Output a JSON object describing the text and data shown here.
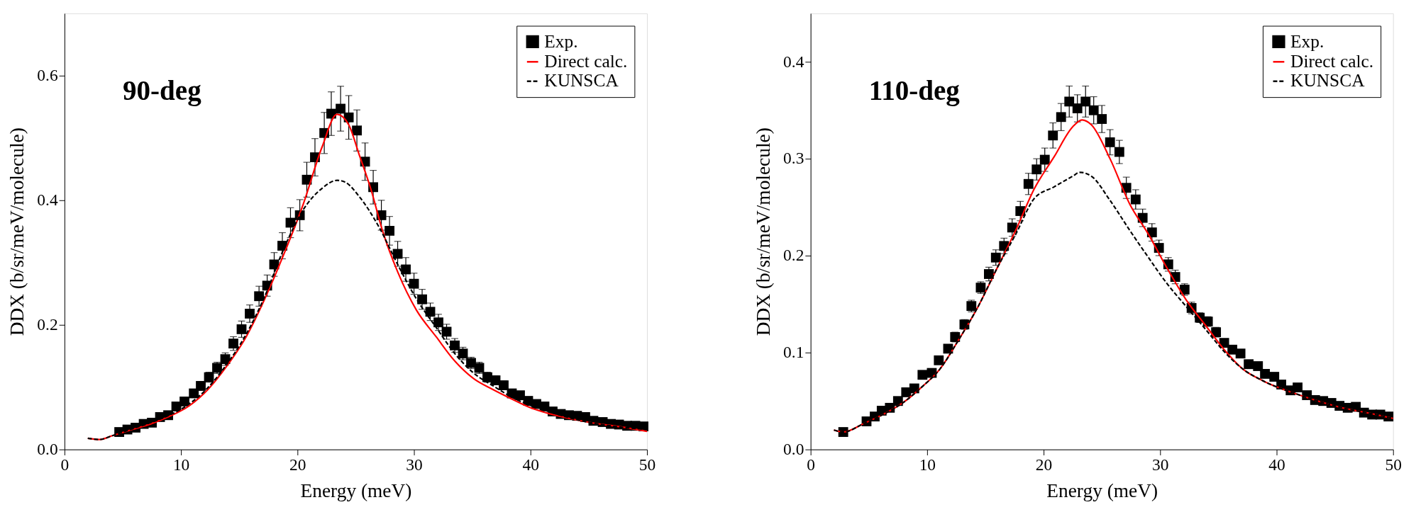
{
  "chart_data": [
    {
      "type": "line",
      "xlabel": "Energy (meV)",
      "ylabel": "DDX (b/sr/meV/molecule)",
      "xlim": [
        0,
        50
      ],
      "xticks": [
        0,
        10,
        20,
        30,
        40,
        50
      ],
      "ylim": [
        0,
        0.7
      ],
      "yticks": [
        {
          "value": 0,
          "label": "0.0"
        },
        0.2,
        0.4,
        0.6
      ],
      "legend": "top right",
      "grid": false,
      "annotations": [
        "90-deg"
      ],
      "series": [
        {
          "name": "Exp.",
          "type": "scatter",
          "marker": "square",
          "color": "#000000",
          "x": [
            4.7,
            5.4,
            6.1,
            6.8,
            7.5,
            8.2,
            8.9,
            9.6,
            10.3,
            11.1,
            11.7,
            12.4,
            13.1,
            13.8,
            14.5,
            15.2,
            15.9,
            16.7,
            17.4,
            18.0,
            18.7,
            19.4,
            20.2,
            20.8,
            21.5,
            22.3,
            22.9,
            23.7,
            24.4,
            25.1,
            25.8,
            26.5,
            27.2,
            27.9,
            28.6,
            29.3,
            30.0,
            30.7,
            31.4,
            32.1,
            32.8,
            33.5,
            34.2,
            34.9,
            35.6,
            36.3,
            37.0,
            37.7,
            38.4,
            39.1,
            39.8,
            40.5,
            41.2,
            41.9,
            42.6,
            43.3,
            44.0,
            44.7,
            45.4,
            46.2,
            46.9,
            47.6,
            48.3,
            49.0,
            49.7
          ],
          "values": [
            0.028,
            0.032,
            0.035,
            0.041,
            0.043,
            0.052,
            0.055,
            0.069,
            0.077,
            0.09,
            0.102,
            0.116,
            0.131,
            0.145,
            0.17,
            0.193,
            0.218,
            0.246,
            0.263,
            0.297,
            0.327,
            0.364,
            0.376,
            0.433,
            0.469,
            0.508,
            0.539,
            0.547,
            0.533,
            0.512,
            0.462,
            0.421,
            0.376,
            0.351,
            0.314,
            0.289,
            0.266,
            0.241,
            0.221,
            0.204,
            0.189,
            0.167,
            0.154,
            0.139,
            0.131,
            0.116,
            0.111,
            0.103,
            0.09,
            0.087,
            0.078,
            0.073,
            0.069,
            0.061,
            0.057,
            0.055,
            0.054,
            0.052,
            0.046,
            0.044,
            0.041,
            0.04,
            0.038,
            0.038,
            0.037
          ],
          "errors": [
            0.003,
            0.003,
            0.003,
            0.003,
            0.003,
            0.004,
            0.004,
            0.005,
            0.005,
            0.006,
            0.007,
            0.008,
            0.009,
            0.01,
            0.011,
            0.013,
            0.014,
            0.016,
            0.017,
            0.019,
            0.021,
            0.024,
            0.025,
            0.028,
            0.03,
            0.033,
            0.035,
            0.036,
            0.035,
            0.033,
            0.03,
            0.027,
            0.024,
            0.023,
            0.02,
            0.019,
            0.017,
            0.016,
            0.014,
            0.013,
            0.012,
            0.011,
            0.01,
            0.009,
            0.009,
            0.008,
            0.007,
            0.007,
            0.006,
            0.006,
            0.005,
            0.005,
            0.005,
            0.004,
            0.004,
            0.004,
            0.004,
            0.003,
            0.003,
            0.003,
            0.003,
            0.003,
            0.003,
            0.003,
            0.003
          ]
        },
        {
          "name": "Direct calc.",
          "line_style": "solid",
          "color": "#ff0000",
          "x": [
            2.0,
            3.0,
            4.1,
            5.8,
            7.4,
            9.0,
            10.7,
            12.3,
            13.9,
            15.6,
            17.2,
            18.8,
            20.5,
            22.1,
            23.4,
            24.4,
            25.3,
            26.3,
            27.3,
            28.6,
            30.2,
            31.9,
            33.5,
            35.1,
            36.8,
            38.4,
            40.0,
            41.7,
            44.9,
            48.2,
            50.0
          ],
          "values": [
            0.018,
            0.016,
            0.022,
            0.032,
            0.041,
            0.053,
            0.07,
            0.096,
            0.133,
            0.181,
            0.242,
            0.312,
            0.394,
            0.485,
            0.538,
            0.521,
            0.473,
            0.418,
            0.351,
            0.285,
            0.224,
            0.181,
            0.142,
            0.114,
            0.096,
            0.081,
            0.067,
            0.057,
            0.044,
            0.035,
            0.029
          ]
        },
        {
          "name": "KUNSCA",
          "line_style": "dashed",
          "color": "#000000",
          "x": [
            2.0,
            3.0,
            4.1,
            5.8,
            7.4,
            9.0,
            10.7,
            12.3,
            13.9,
            15.6,
            17.2,
            18.8,
            20.5,
            22.1,
            23.4,
            24.1,
            25.3,
            27.0,
            28.6,
            30.2,
            31.9,
            33.5,
            35.1,
            36.8,
            38.4,
            41.7,
            44.9,
            48.2,
            50.0
          ],
          "values": [
            0.018,
            0.016,
            0.022,
            0.033,
            0.043,
            0.055,
            0.073,
            0.099,
            0.136,
            0.185,
            0.246,
            0.321,
            0.385,
            0.419,
            0.432,
            0.429,
            0.406,
            0.357,
            0.297,
            0.242,
            0.196,
            0.154,
            0.123,
            0.102,
            0.084,
            0.06,
            0.044,
            0.035,
            0.032
          ]
        }
      ]
    },
    {
      "type": "line",
      "xlabel": "Energy (meV)",
      "ylabel": "DDX (b/sr/meV/molecule)",
      "xlim": [
        0,
        50
      ],
      "xticks": [
        0,
        10,
        20,
        30,
        40,
        50
      ],
      "ylim": [
        0,
        0.45
      ],
      "yticks": [
        {
          "value": 0,
          "label": "0.0"
        },
        0.1,
        0.2,
        0.3,
        0.4
      ],
      "legend": "top right",
      "grid": false,
      "annotations": [
        "110-deg"
      ],
      "series": [
        {
          "name": "Exp.",
          "type": "scatter",
          "marker": "square",
          "color": "#000000",
          "x": [
            2.8,
            4.8,
            5.5,
            6.1,
            6.8,
            7.5,
            8.2,
            8.9,
            9.6,
            10.4,
            11.0,
            11.8,
            12.4,
            13.2,
            13.8,
            14.6,
            15.3,
            15.9,
            16.6,
            17.3,
            18.0,
            18.7,
            19.4,
            20.1,
            20.8,
            21.5,
            22.2,
            22.9,
            23.6,
            24.3,
            25.0,
            25.7,
            26.5,
            27.1,
            27.9,
            28.5,
            29.3,
            29.9,
            30.7,
            31.3,
            32.1,
            32.7,
            33.4,
            34.1,
            34.8,
            35.5,
            36.2,
            36.9,
            37.6,
            38.4,
            39.0,
            39.8,
            40.4,
            41.2,
            41.8,
            42.6,
            43.3,
            44.0,
            44.7,
            45.4,
            46.1,
            46.8,
            47.5,
            48.2,
            48.9,
            49.6
          ],
          "values": [
            0.018,
            0.029,
            0.034,
            0.04,
            0.043,
            0.05,
            0.059,
            0.063,
            0.077,
            0.079,
            0.092,
            0.104,
            0.116,
            0.129,
            0.148,
            0.167,
            0.181,
            0.198,
            0.21,
            0.229,
            0.246,
            0.274,
            0.289,
            0.299,
            0.324,
            0.343,
            0.359,
            0.352,
            0.359,
            0.35,
            0.341,
            0.317,
            0.307,
            0.27,
            0.258,
            0.239,
            0.224,
            0.208,
            0.191,
            0.178,
            0.165,
            0.146,
            0.136,
            0.132,
            0.121,
            0.11,
            0.103,
            0.099,
            0.088,
            0.086,
            0.078,
            0.075,
            0.067,
            0.061,
            0.064,
            0.056,
            0.051,
            0.05,
            0.048,
            0.045,
            0.043,
            0.044,
            0.038,
            0.036,
            0.036,
            0.034
          ],
          "errors": [
            0.001,
            0.002,
            0.002,
            0.002,
            0.002,
            0.002,
            0.003,
            0.003,
            0.003,
            0.003,
            0.004,
            0.004,
            0.005,
            0.005,
            0.006,
            0.006,
            0.007,
            0.008,
            0.008,
            0.009,
            0.01,
            0.011,
            0.011,
            0.012,
            0.013,
            0.014,
            0.016,
            0.014,
            0.016,
            0.014,
            0.014,
            0.013,
            0.012,
            0.011,
            0.01,
            0.009,
            0.009,
            0.008,
            0.007,
            0.007,
            0.006,
            0.006,
            0.005,
            0.005,
            0.005,
            0.004,
            0.004,
            0.004,
            0.003,
            0.003,
            0.003,
            0.003,
            0.003,
            0.002,
            0.002,
            0.002,
            0.002,
            0.002,
            0.002,
            0.002,
            0.002,
            0.002,
            0.002,
            0.001,
            0.001,
            0.001
          ]
        },
        {
          "name": "Direct calc.",
          "line_style": "solid",
          "color": "#ff0000",
          "x": [
            2.0,
            2.8,
            4.6,
            6.2,
            7.9,
            9.5,
            11.1,
            12.7,
            14.4,
            16.0,
            17.6,
            19.2,
            20.9,
            22.5,
            23.3,
            24.1,
            25.7,
            27.4,
            29.0,
            30.6,
            32.2,
            33.9,
            35.5,
            37.1,
            38.8,
            42.0,
            45.3,
            48.5,
            50.0
          ],
          "values": [
            0.02,
            0.018,
            0.027,
            0.036,
            0.048,
            0.064,
            0.083,
            0.113,
            0.148,
            0.187,
            0.226,
            0.269,
            0.302,
            0.333,
            0.34,
            0.335,
            0.3,
            0.253,
            0.222,
            0.187,
            0.155,
            0.128,
            0.103,
            0.083,
            0.071,
            0.056,
            0.044,
            0.036,
            0.032
          ]
        },
        {
          "name": "KUNSCA",
          "line_style": "dashed",
          "color": "#000000",
          "x": [
            2.0,
            2.8,
            4.6,
            6.2,
            7.9,
            9.5,
            11.1,
            12.7,
            14.4,
            16.0,
            17.6,
            19.2,
            20.9,
            22.5,
            23.1,
            24.1,
            25.7,
            27.4,
            29.0,
            30.6,
            32.2,
            33.9,
            35.5,
            37.1,
            38.8,
            42.0,
            45.3,
            48.5,
            50.0
          ],
          "values": [
            0.02,
            0.018,
            0.027,
            0.036,
            0.048,
            0.064,
            0.083,
            0.113,
            0.148,
            0.187,
            0.222,
            0.259,
            0.271,
            0.282,
            0.286,
            0.282,
            0.257,
            0.226,
            0.198,
            0.171,
            0.148,
            0.124,
            0.101,
            0.083,
            0.071,
            0.056,
            0.044,
            0.036,
            0.032
          ]
        }
      ]
    }
  ]
}
